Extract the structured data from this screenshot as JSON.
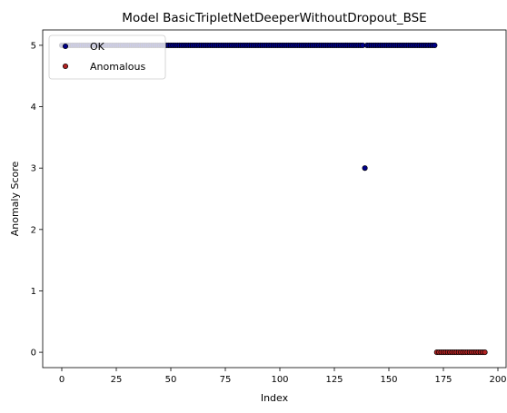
{
  "chart_data": {
    "type": "scatter",
    "title": "Model BasicTripletNetDeeperWithoutDropout_BSE",
    "xlabel": "Index",
    "ylabel": "Anomaly Score",
    "xlim": [
      -8.75,
      203.75
    ],
    "ylim": [
      -0.25,
      5.25
    ],
    "xticks": [
      0,
      25,
      50,
      75,
      100,
      125,
      150,
      175,
      200
    ],
    "yticks": [
      0,
      1,
      2,
      3,
      4,
      5
    ],
    "grid": false,
    "legend_position": "top-left",
    "series": [
      {
        "name": "OK",
        "color": "#00008b",
        "x_range": [
          0,
          171
        ],
        "y_default": 5,
        "exceptions": [
          {
            "x": 139,
            "y": 3
          }
        ]
      },
      {
        "name": "Anomalous",
        "color": "#b22222",
        "x_range": [
          172,
          194
        ],
        "y_default": 0,
        "exceptions": []
      }
    ]
  }
}
